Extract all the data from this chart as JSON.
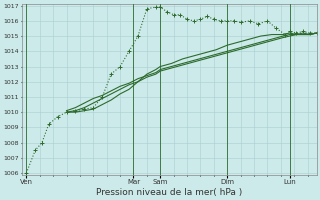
{
  "background_color": "#cdeaea",
  "grid_color": "#aacfcf",
  "line_color": "#2d6b2d",
  "xlabel": "Pression niveau de la mer( hPa )",
  "ylim": [
    1006,
    1017
  ],
  "yticks": [
    1006,
    1007,
    1008,
    1009,
    1010,
    1011,
    1012,
    1013,
    1014,
    1015,
    1016,
    1017
  ],
  "day_labels": [
    "Ven",
    "Mar",
    "Sam",
    "Dim",
    "Lun"
  ],
  "day_positions": [
    0,
    48,
    60,
    90,
    118
  ],
  "xlim": [
    -2,
    130
  ],
  "vlines": [
    0,
    48,
    60,
    90,
    118
  ],
  "series": [
    {
      "x": [
        0,
        4,
        7,
        10,
        14,
        18,
        22,
        26,
        30,
        34,
        38,
        42,
        46,
        50,
        54,
        58,
        60,
        63,
        66,
        69,
        72,
        75,
        78,
        81,
        84,
        87,
        90,
        93,
        96,
        100,
        104,
        108,
        112,
        116,
        118,
        121,
        124,
        127,
        130
      ],
      "y": [
        1006.0,
        1007.5,
        1008.0,
        1009.2,
        1009.7,
        1010.0,
        1010.1,
        1010.2,
        1010.3,
        1011.0,
        1012.5,
        1013.0,
        1014.0,
        1015.0,
        1016.8,
        1016.9,
        1016.9,
        1016.6,
        1016.4,
        1016.4,
        1016.1,
        1016.0,
        1016.1,
        1016.3,
        1016.1,
        1016.0,
        1016.0,
        1016.0,
        1015.9,
        1016.0,
        1015.8,
        1016.0,
        1015.5,
        1015.1,
        1015.3,
        1015.2,
        1015.3,
        1015.2,
        1015.2
      ],
      "style": "dotted",
      "marker": "+"
    },
    {
      "x": [
        18,
        22,
        26,
        30,
        34,
        38,
        42,
        46,
        50,
        54,
        58,
        60,
        65,
        70,
        75,
        80,
        85,
        90,
        95,
        100,
        105,
        110,
        115,
        118,
        121,
        124,
        127,
        130
      ],
      "y": [
        1010.0,
        1010.0,
        1010.1,
        1010.2,
        1010.5,
        1010.8,
        1011.2,
        1011.5,
        1012.0,
        1012.5,
        1012.8,
        1013.0,
        1013.2,
        1013.5,
        1013.7,
        1013.9,
        1014.1,
        1014.4,
        1014.6,
        1014.8,
        1015.0,
        1015.1,
        1015.1,
        1015.2,
        1015.1,
        1015.1,
        1015.1,
        1015.2
      ],
      "style": "solid",
      "marker": null
    },
    {
      "x": [
        18,
        22,
        26,
        30,
        34,
        38,
        42,
        46,
        50,
        54,
        58,
        60,
        65,
        70,
        75,
        80,
        85,
        90,
        95,
        100,
        105,
        110,
        115,
        118,
        121,
        124,
        127,
        130
      ],
      "y": [
        1010.0,
        1010.1,
        1010.3,
        1010.6,
        1010.9,
        1011.2,
        1011.5,
        1011.8,
        1012.0,
        1012.3,
        1012.5,
        1012.7,
        1012.9,
        1013.1,
        1013.3,
        1013.5,
        1013.7,
        1013.9,
        1014.1,
        1014.3,
        1014.5,
        1014.7,
        1014.9,
        1015.0,
        1015.1,
        1015.1,
        1015.1,
        1015.2
      ],
      "style": "solid",
      "marker": null
    },
    {
      "x": [
        18,
        22,
        26,
        30,
        34,
        38,
        42,
        46,
        50,
        54,
        58,
        60,
        65,
        70,
        75,
        80,
        85,
        90,
        95,
        100,
        105,
        110,
        115,
        118,
        121,
        124,
        127,
        130
      ],
      "y": [
        1010.1,
        1010.3,
        1010.6,
        1010.9,
        1011.1,
        1011.4,
        1011.7,
        1011.9,
        1012.2,
        1012.4,
        1012.6,
        1012.8,
        1013.0,
        1013.2,
        1013.4,
        1013.6,
        1013.8,
        1014.0,
        1014.2,
        1014.4,
        1014.6,
        1014.8,
        1015.0,
        1015.1,
        1015.1,
        1015.2,
        1015.1,
        1015.2
      ],
      "style": "solid",
      "marker": null
    }
  ]
}
